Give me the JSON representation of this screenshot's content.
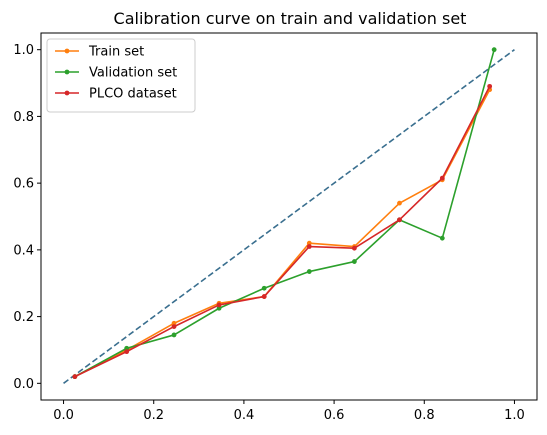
{
  "chart_data": {
    "type": "line",
    "title": "Calibration curve on train and validation set",
    "xlabel": "",
    "ylabel": "",
    "xlim": [
      -0.05,
      1.05
    ],
    "ylim": [
      -0.05,
      1.05
    ],
    "xticks": [
      0.0,
      0.2,
      0.4,
      0.6,
      0.8,
      1.0
    ],
    "xtick_labels": [
      "0.0",
      "0.2",
      "0.4",
      "0.6",
      "0.8",
      "1.0"
    ],
    "yticks": [
      0.0,
      0.2,
      0.4,
      0.6,
      0.8,
      1.0
    ],
    "ytick_labels": [
      "0.0",
      "0.2",
      "0.4",
      "0.6",
      "0.8",
      "1.0"
    ],
    "grid": false,
    "legend_position": "top-left",
    "reference_line": {
      "style": "dashed",
      "color": "#3a6f8f",
      "x": [
        0.0,
        1.0
      ],
      "y": [
        0.0,
        1.0
      ]
    },
    "series": [
      {
        "name": "Train set",
        "color": "#ff7f0e",
        "marker": "dot",
        "x": [
          0.025,
          0.14,
          0.245,
          0.345,
          0.445,
          0.545,
          0.645,
          0.745,
          0.84,
          0.945
        ],
        "y": [
          0.02,
          0.1,
          0.18,
          0.24,
          0.26,
          0.42,
          0.41,
          0.54,
          0.61,
          0.88
        ]
      },
      {
        "name": "Validation set",
        "color": "#2ca02c",
        "marker": "dot",
        "x": [
          0.025,
          0.14,
          0.245,
          0.345,
          0.445,
          0.545,
          0.645,
          0.745,
          0.84,
          0.955
        ],
        "y": [
          0.02,
          0.105,
          0.145,
          0.225,
          0.285,
          0.335,
          0.365,
          0.49,
          0.435,
          1.0
        ]
      },
      {
        "name": "PLCO dataset",
        "color": "#d62728",
        "marker": "dot",
        "x": [
          0.025,
          0.14,
          0.245,
          0.345,
          0.445,
          0.545,
          0.645,
          0.745,
          0.84,
          0.945
        ],
        "y": [
          0.02,
          0.095,
          0.17,
          0.235,
          0.26,
          0.41,
          0.405,
          0.49,
          0.615,
          0.89
        ]
      }
    ]
  }
}
